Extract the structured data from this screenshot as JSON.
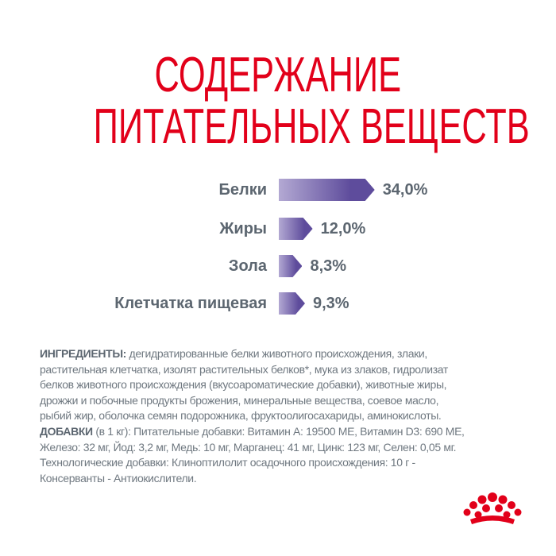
{
  "title": {
    "line1": "СОДЕРЖАНИЕ",
    "line2": "ПИТАТЕЛЬНЫХ ВЕЩЕСТВ",
    "color": "#e2001a"
  },
  "chart_data": {
    "type": "bar",
    "orientation": "horizontal",
    "categories": [
      "Белки",
      "Жиры",
      "Зола",
      "Клетчатка пищевая"
    ],
    "values": [
      34.0,
      12.0,
      8.3,
      9.3
    ],
    "value_labels": [
      "34,0%",
      "12,0%",
      "8,3%",
      "9,3%"
    ],
    "unit": "%",
    "bar_color": "#5e4c9c"
  },
  "ingredients": {
    "label": "ИНГРЕДИЕНТЫ:",
    "lines": [
      " дегидратированные белки животного происхождения, злаки,",
      "растительная клетчатка, изолят растительных белков*, мука из злаков, гидролизат",
      "белков животного происхождения (вкусоароматические добавки), животные жиры,",
      "дрожжи и побочные продукты брожения, минеральные вещества, соевое масло,",
      "рыбий жир, оболочка семян подорожника, фруктоолигосахариды, аминокислоты."
    ]
  },
  "additives": {
    "label": "ДОБАВКИ",
    "lines": [
      " (в 1 кг): Питательные добавки: Витамин А: 19500 МЕ, Витамин D3: 690 МЕ,",
      "Железо: 32 мг, Йод: 3,2 мг, Медь: 10 мг, Марганец: 41 мг, Цинк: 123 мг, Селен: 0,05 мг.",
      "Технологические добавки: Клиноптилолит осадочного происхождения: 10 г -",
      "Консерванты - Антиокислители."
    ]
  },
  "logo": {
    "name": "royal-canin-crown",
    "color": "#e2001a"
  }
}
